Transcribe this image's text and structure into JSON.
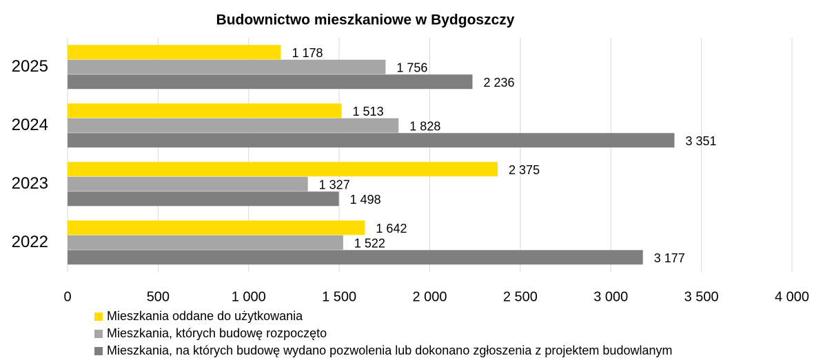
{
  "chart_data": {
    "type": "hbar",
    "title": "Budownictwo mieszkaniowe w Bydgoszczy",
    "categories": [
      "2025",
      "2024",
      "2023",
      "2022"
    ],
    "series": [
      {
        "name": "Mieszkania oddane do użytkowania",
        "color": "#ffdd00",
        "values": [
          1178,
          1513,
          2375,
          1642
        ],
        "value_labels": [
          "1 178",
          "1 513",
          "2 375",
          "1 642"
        ],
        "label_color": "#595959"
      },
      {
        "name": "Mieszkania, których budowę rozpoczęto",
        "color": "#a6a6a6",
        "values": [
          1756,
          1828,
          1327,
          1522
        ],
        "value_labels": [
          "1 756",
          "1 828",
          "1 327",
          "1 522"
        ],
        "label_color": "#000000"
      },
      {
        "name": "Mieszkania, na których budowę wydano pozwolenia lub dokonano zgłoszenia z projektem budowlanym",
        "color": "#7f7f7f",
        "values": [
          2236,
          3351,
          1498,
          3177
        ],
        "value_labels": [
          "2 236",
          "3 351",
          "1 498",
          "3 177"
        ],
        "label_color": "#000000"
      }
    ],
    "xlim": [
      0,
      4000
    ],
    "xticks": [
      0,
      500,
      {
        "value": 1000,
        "label": "1 000"
      },
      {
        "value": 1500,
        "label": "1 500"
      },
      {
        "value": 2000,
        "label": "2 000"
      },
      {
        "value": 2500,
        "label": "2 500"
      },
      {
        "value": 3000,
        "label": "3 000"
      },
      {
        "value": 3500,
        "label": "3 500"
      },
      {
        "value": 4000,
        "label": "4 000"
      }
    ],
    "grid": true
  }
}
